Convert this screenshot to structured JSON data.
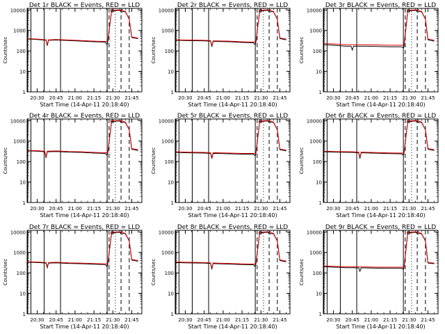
{
  "colors": {
    "events": "#000000",
    "lld": "#e00000",
    "axis": "#000000",
    "background": "#ffffff"
  },
  "shared": {
    "xlabel": "Start Time (14-Apr-11 20:18:40)",
    "ylabel": "Counts/sec",
    "x_ticks": [
      {
        "t": 30.0,
        "label": "20:30"
      },
      {
        "t": 45.0,
        "label": "20:45"
      },
      {
        "t": 60.0,
        "label": "21:00"
      },
      {
        "t": 75.0,
        "label": "21:15"
      },
      {
        "t": 90.0,
        "label": "21:30"
      },
      {
        "t": 105.0,
        "label": "21:45"
      }
    ],
    "y_ticks": [
      {
        "v": 1,
        "label": "1"
      },
      {
        "v": 10,
        "label": "10"
      },
      {
        "v": 100,
        "label": "100"
      },
      {
        "v": 1000,
        "label": "1000"
      },
      {
        "v": 10000,
        "label": "10000"
      }
    ],
    "xlim": [
      22.0,
      113.0
    ],
    "ylim": [
      1,
      12000
    ],
    "y_scale": "log",
    "markers": {
      "solid": [
        22.5,
        25.0,
        35.5,
        48.5,
        85.5
      ],
      "dashed": [
        87.0,
        96.5,
        103.0
      ],
      "dotted": [
        92.0
      ]
    },
    "top_square_labels": [
      {
        "t": 89.5,
        "label": "O"
      },
      {
        "t": 97.0,
        "label": "C"
      }
    ]
  },
  "chart_data": [
    {
      "type": "line",
      "title": "Det 1r BLACK = Events, RED = LLD",
      "ylabel": "Counts/sec",
      "xlabel": "Start Time (14-Apr-11 20:18:40)",
      "ylim": [
        1,
        12000
      ],
      "series": [
        {
          "name": "Events",
          "color": "#000000",
          "x": [
            22.5,
            30,
            37,
            38,
            39,
            45,
            55,
            65,
            75,
            84,
            85.5,
            86,
            89,
            93,
            95,
            97,
            100,
            103,
            105,
            110
          ],
          "y": [
            380,
            360,
            330,
            180,
            330,
            340,
            320,
            300,
            280,
            270,
            200,
            280,
            9000,
            9500,
            9500,
            9000,
            8000,
            3500,
            450,
            400
          ]
        },
        {
          "name": "LLD",
          "color": "#e00000",
          "x": [
            22.5,
            30,
            37,
            38,
            39,
            45,
            55,
            65,
            75,
            84,
            86,
            89,
            93,
            95,
            97,
            100,
            103,
            105,
            110
          ],
          "y": [
            400,
            380,
            350,
            200,
            350,
            360,
            340,
            320,
            300,
            290,
            300,
            9500,
            10000,
            10000,
            9500,
            8500,
            3500,
            480,
            420
          ]
        }
      ]
    },
    {
      "type": "line",
      "title": "Det 2r BLACK = Events, RED = LLD",
      "ylabel": "Counts/sec",
      "xlabel": "Start Time (14-Apr-11 20:18:40)",
      "ylim": [
        1,
        12000
      ],
      "series": [
        {
          "name": "Events",
          "color": "#000000",
          "x": [
            22.5,
            30,
            45,
            50,
            51,
            52,
            55,
            65,
            75,
            84,
            85.5,
            86,
            89,
            93,
            95,
            97,
            100,
            103,
            105,
            110
          ],
          "y": [
            330,
            320,
            310,
            300,
            160,
            290,
            290,
            280,
            260,
            250,
            200,
            260,
            9000,
            9500,
            9500,
            9000,
            8000,
            3500,
            400,
            350
          ]
        },
        {
          "name": "LLD",
          "color": "#e00000",
          "x": [
            22.5,
            30,
            45,
            50,
            51,
            52,
            55,
            65,
            75,
            84,
            86,
            89,
            93,
            95,
            97,
            100,
            103,
            105,
            110
          ],
          "y": [
            350,
            340,
            330,
            320,
            180,
            310,
            310,
            300,
            280,
            270,
            280,
            9500,
            10000,
            10000,
            9500,
            8500,
            3500,
            430,
            380
          ]
        }
      ]
    },
    {
      "type": "line",
      "title": "Det 3r BLACK = Events, RED = LLD",
      "ylabel": "Counts/sec",
      "xlabel": "Start Time (14-Apr-11 20:18:40)",
      "ylim": [
        1,
        12000
      ],
      "series": [
        {
          "name": "Events",
          "color": "#000000",
          "x": [
            22.5,
            30,
            35.5,
            40,
            44,
            45,
            46,
            55,
            65,
            75,
            84,
            85.5,
            86,
            89,
            93,
            95,
            97,
            100,
            103,
            105,
            110
          ],
          "y": [
            200,
            190,
            180,
            170,
            170,
            110,
            170,
            170,
            165,
            160,
            160,
            140,
            160,
            9000,
            9500,
            9500,
            9000,
            8000,
            3500,
            350,
            300
          ]
        },
        {
          "name": "LLD",
          "color": "#e00000",
          "x": [
            22.5,
            30,
            35.5,
            40,
            45,
            55,
            65,
            75,
            84,
            86,
            89,
            93,
            95,
            97,
            100,
            103,
            105,
            110
          ],
          "y": [
            230,
            220,
            210,
            200,
            200,
            200,
            195,
            190,
            190,
            195,
            9500,
            10000,
            10000,
            9500,
            8500,
            3500,
            380,
            330
          ]
        }
      ]
    },
    {
      "type": "line",
      "title": "Det 4r BLACK = Events, RED = LLD",
      "ylabel": "Counts/sec",
      "xlabel": "Start Time (14-Apr-11 20:18:40)",
      "ylim": [
        1,
        12000
      ],
      "series": [
        {
          "name": "Events",
          "color": "#000000",
          "x": [
            22.5,
            30,
            36,
            37,
            38,
            45,
            55,
            65,
            75,
            84,
            85.5,
            86,
            89,
            93,
            95,
            97,
            100,
            103,
            105,
            110
          ],
          "y": [
            330,
            320,
            300,
            150,
            300,
            310,
            290,
            280,
            260,
            250,
            200,
            260,
            9000,
            9500,
            9500,
            9000,
            8000,
            3500,
            400,
            350
          ]
        },
        {
          "name": "LLD",
          "color": "#e00000",
          "x": [
            22.5,
            30,
            36,
            37,
            38,
            45,
            55,
            65,
            75,
            84,
            86,
            89,
            93,
            95,
            97,
            100,
            103,
            105,
            110
          ],
          "y": [
            350,
            340,
            320,
            170,
            320,
            330,
            310,
            300,
            280,
            270,
            280,
            9500,
            10000,
            10000,
            9500,
            8500,
            3500,
            430,
            380
          ]
        }
      ]
    },
    {
      "type": "line",
      "title": "Det 5r BLACK = Events, RED = LLD",
      "ylabel": "Counts/sec",
      "xlabel": "Start Time (14-Apr-11 20:18:40)",
      "ylim": [
        1,
        12000
      ],
      "series": [
        {
          "name": "Events",
          "color": "#000000",
          "x": [
            22.5,
            30,
            45,
            50,
            51,
            52,
            55,
            65,
            75,
            84,
            85.5,
            86,
            89,
            93,
            95,
            97,
            100,
            103,
            105,
            110
          ],
          "y": [
            280,
            270,
            260,
            250,
            140,
            250,
            250,
            240,
            230,
            230,
            190,
            235,
            9000,
            9500,
            9500,
            9000,
            8000,
            3500,
            380,
            330
          ]
        },
        {
          "name": "LLD",
          "color": "#e00000",
          "x": [
            22.5,
            30,
            45,
            50,
            51,
            52,
            55,
            65,
            75,
            84,
            86,
            89,
            93,
            95,
            97,
            100,
            103,
            105,
            110
          ],
          "y": [
            300,
            290,
            280,
            270,
            160,
            270,
            270,
            260,
            250,
            250,
            255,
            9500,
            10000,
            10000,
            9500,
            8500,
            3500,
            410,
            360
          ]
        }
      ]
    },
    {
      "type": "line",
      "title": "Det 6r BLACK = Events, RED = LLD",
      "ylabel": "Counts/sec",
      "xlabel": "Start Time (14-Apr-11 20:18:40)",
      "ylim": [
        1,
        12000
      ],
      "series": [
        {
          "name": "Events",
          "color": "#000000",
          "x": [
            22.5,
            30,
            45,
            50,
            51,
            52,
            55,
            65,
            75,
            84,
            85.5,
            86,
            89,
            93,
            95,
            97,
            100,
            103,
            105,
            110
          ],
          "y": [
            300,
            290,
            280,
            270,
            140,
            270,
            265,
            255,
            245,
            240,
            200,
            245,
            9000,
            9500,
            9500,
            9000,
            8000,
            3500,
            400,
            350
          ]
        },
        {
          "name": "LLD",
          "color": "#e00000",
          "x": [
            22.5,
            30,
            45,
            50,
            51,
            52,
            55,
            65,
            75,
            84,
            86,
            89,
            93,
            95,
            97,
            100,
            103,
            105,
            110
          ],
          "y": [
            320,
            310,
            300,
            290,
            160,
            290,
            285,
            275,
            265,
            260,
            265,
            9500,
            10000,
            10000,
            9500,
            8500,
            3500,
            430,
            380
          ]
        }
      ]
    },
    {
      "type": "line",
      "title": "Det 7r BLACK = Events, RED = LLD",
      "ylabel": "Counts/sec",
      "xlabel": "Start Time (14-Apr-11 20:18:40)",
      "ylim": [
        1,
        12000
      ],
      "series": [
        {
          "name": "Events",
          "color": "#000000",
          "x": [
            22.5,
            30,
            37,
            38,
            39,
            45,
            55,
            65,
            75,
            84,
            85.5,
            86,
            89,
            93,
            95,
            97,
            100,
            103,
            105,
            110
          ],
          "y": [
            330,
            320,
            300,
            180,
            300,
            310,
            290,
            280,
            265,
            255,
            200,
            260,
            9000,
            9500,
            9500,
            9000,
            8000,
            3500,
            420,
            370
          ]
        },
        {
          "name": "LLD",
          "color": "#e00000",
          "x": [
            22.5,
            30,
            37,
            38,
            39,
            45,
            55,
            65,
            75,
            84,
            86,
            89,
            93,
            95,
            97,
            100,
            103,
            105,
            110
          ],
          "y": [
            350,
            340,
            320,
            200,
            320,
            330,
            310,
            300,
            285,
            275,
            280,
            9500,
            10000,
            10000,
            9500,
            8500,
            3500,
            450,
            400
          ]
        }
      ]
    },
    {
      "type": "line",
      "title": "Det 8r BLACK = Events, RED = LLD",
      "ylabel": "Counts/sec",
      "xlabel": "Start Time (14-Apr-11 20:18:40)",
      "ylim": [
        1,
        12000
      ],
      "series": [
        {
          "name": "Events",
          "color": "#000000",
          "x": [
            22.5,
            30,
            45,
            50,
            51,
            52,
            55,
            65,
            75,
            84,
            85.5,
            86,
            89,
            93,
            95,
            97,
            100,
            103,
            105,
            110
          ],
          "y": [
            320,
            310,
            300,
            290,
            150,
            285,
            280,
            270,
            255,
            250,
            200,
            255,
            9000,
            9500,
            9500,
            9000,
            8000,
            3500,
            400,
            350
          ]
        },
        {
          "name": "LLD",
          "color": "#e00000",
          "x": [
            22.5,
            30,
            45,
            50,
            51,
            52,
            55,
            65,
            75,
            84,
            86,
            89,
            93,
            95,
            97,
            100,
            103,
            105,
            110
          ],
          "y": [
            340,
            330,
            320,
            310,
            170,
            305,
            300,
            290,
            275,
            270,
            275,
            9500,
            10000,
            10000,
            9500,
            8500,
            3500,
            430,
            380
          ]
        }
      ]
    },
    {
      "type": "line",
      "title": "Det 9r BLACK = Events, RED = LLD",
      "ylabel": "Counts/sec",
      "xlabel": "Start Time (14-Apr-11 20:18:40)",
      "ylim": [
        1,
        12000
      ],
      "series": [
        {
          "name": "Events",
          "color": "#000000",
          "x": [
            22.5,
            30,
            35.5,
            40,
            45,
            50,
            51,
            52,
            55,
            65,
            75,
            84,
            85.5,
            86,
            89,
            93,
            95,
            97,
            100,
            103,
            105,
            110
          ],
          "y": [
            200,
            190,
            185,
            180,
            180,
            175,
            120,
            175,
            175,
            170,
            170,
            170,
            150,
            170,
            9000,
            9500,
            9500,
            9000,
            8000,
            3500,
            300,
            280
          ]
        },
        {
          "name": "LLD",
          "color": "#e00000",
          "x": [
            22.5,
            30,
            35.5,
            40,
            45,
            50,
            52,
            55,
            65,
            75,
            84,
            86,
            89,
            93,
            95,
            97,
            100,
            103,
            105,
            110
          ],
          "y": [
            220,
            210,
            205,
            200,
            200,
            195,
            195,
            195,
            190,
            190,
            190,
            190,
            9500,
            10000,
            10000,
            9500,
            8500,
            3500,
            320,
            300
          ]
        }
      ]
    }
  ]
}
